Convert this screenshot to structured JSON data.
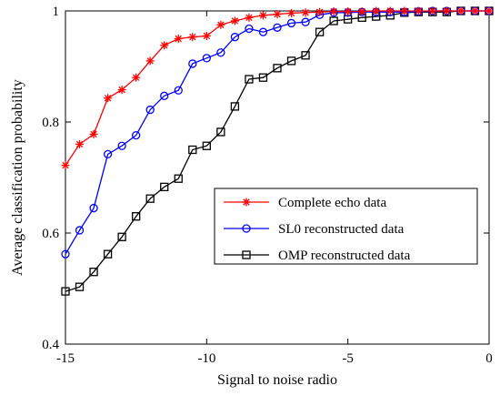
{
  "chart_data": {
    "type": "line",
    "xlabel": "Signal to noise radio",
    "ylabel": "Average classification probability",
    "xlim": [
      -15,
      0
    ],
    "ylim": [
      0.4,
      1.0
    ],
    "xticks": [
      -15,
      -10,
      -5,
      0
    ],
    "xtick_labels": [
      "-15",
      "-10",
      "-5",
      "0"
    ],
    "yticks": [
      0.4,
      0.6,
      0.8,
      1.0
    ],
    "ytick_labels": [
      "0.4",
      "0.6",
      "0.8",
      "1"
    ],
    "grid": false,
    "legend_position": "center-right",
    "x": [
      -15,
      -14.5,
      -14,
      -13.5,
      -13,
      -12.5,
      -12,
      -11.5,
      -11,
      -10.5,
      -10,
      -9.5,
      -9,
      -8.5,
      -8,
      -7.5,
      -7,
      -6.5,
      -6,
      -5.5,
      -5,
      -4.5,
      -4,
      -3.5,
      -3,
      -2.5,
      -2,
      -1.5,
      -1,
      -0.5,
      0
    ],
    "series": [
      {
        "name": "Complete echo data",
        "color": "#ff0000",
        "marker": "star",
        "values": [
          0.722,
          0.76,
          0.778,
          0.843,
          0.858,
          0.88,
          0.91,
          0.938,
          0.95,
          0.953,
          0.955,
          0.975,
          0.982,
          0.988,
          0.992,
          0.994,
          0.996,
          0.997,
          0.998,
          0.999,
          0.999,
          0.999,
          1.0,
          1.0,
          1.0,
          1.0,
          1.0,
          1.0,
          1.0,
          1.0,
          1.0
        ]
      },
      {
        "name": "SL0 reconstructed data",
        "color": "#0000ff",
        "marker": "circle",
        "values": [
          0.562,
          0.605,
          0.645,
          0.742,
          0.757,
          0.776,
          0.822,
          0.847,
          0.857,
          0.905,
          0.915,
          0.925,
          0.953,
          0.968,
          0.962,
          0.97,
          0.978,
          0.98,
          0.993,
          0.997,
          0.997,
          0.998,
          0.998,
          0.998,
          0.998,
          0.999,
          1.0,
          1.0,
          1.0,
          1.0,
          1.0
        ]
      },
      {
        "name": "OMP reconstructed data",
        "color": "#000000",
        "marker": "square",
        "values": [
          0.495,
          0.503,
          0.53,
          0.562,
          0.593,
          0.63,
          0.662,
          0.683,
          0.698,
          0.75,
          0.757,
          0.782,
          0.828,
          0.877,
          0.88,
          0.897,
          0.91,
          0.92,
          0.962,
          0.982,
          0.985,
          0.988,
          0.99,
          0.992,
          0.997,
          0.998,
          0.998,
          0.998,
          1.0,
          1.0,
          1.0
        ]
      }
    ]
  }
}
